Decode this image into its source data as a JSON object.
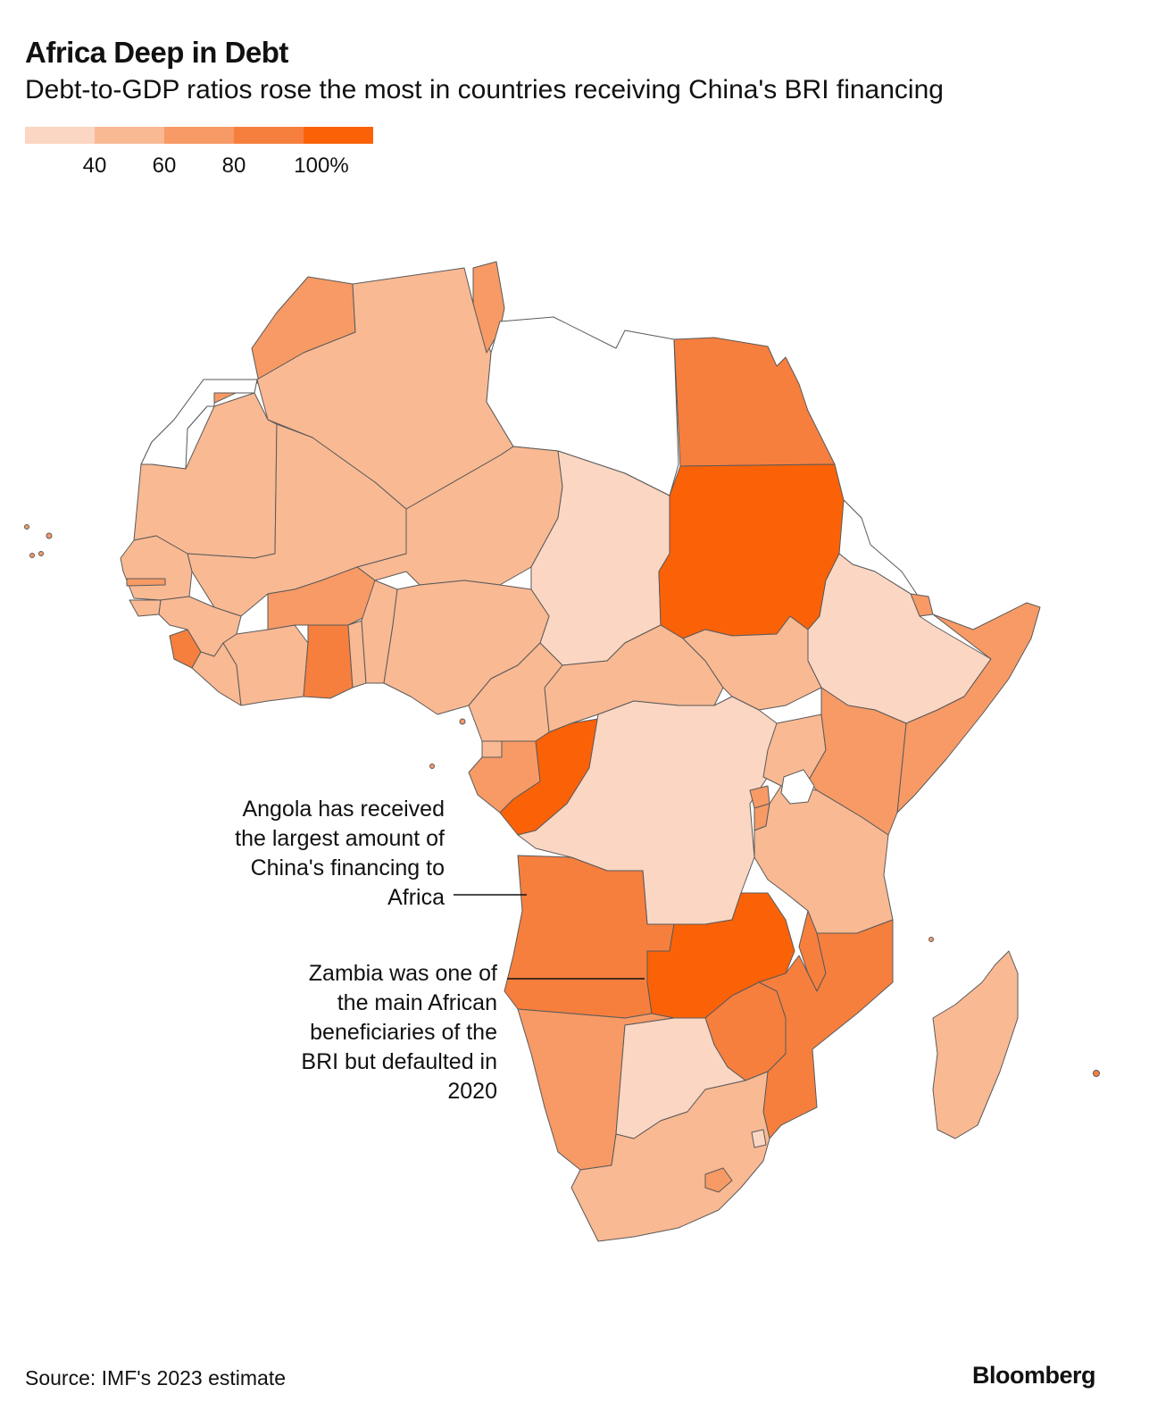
{
  "title": "Africa Deep in Debt",
  "subtitle": "Debt-to-GDP ratios rose the most in countries receiving China's BRI financing",
  "legend": {
    "bins": [
      {
        "color": "#fbd6c3"
      },
      {
        "color": "#f9b993"
      },
      {
        "color": "#f79a66"
      },
      {
        "color": "#f67f3e"
      },
      {
        "color": "#fb6208"
      }
    ],
    "ticks": [
      "40",
      "60",
      "80",
      "100%"
    ]
  },
  "colors": {
    "bin1": "#fbd6c3",
    "bin2": "#f9b993",
    "bin3": "#f79a66",
    "bin4": "#f67f3e",
    "bin5": "#fb6208",
    "no_data": "#ffffff",
    "border": "#5a5a5a"
  },
  "annotations": {
    "angola": [
      "Angola has received",
      "the largest amount of",
      "China's financing to",
      "Africa"
    ],
    "zambia": [
      "Zambia was one of",
      "the main African",
      "beneficiaries of the",
      "BRI but defaulted in",
      "2020"
    ]
  },
  "source": "Source: IMF's 2023 estimate",
  "brand": "Bloomberg"
}
